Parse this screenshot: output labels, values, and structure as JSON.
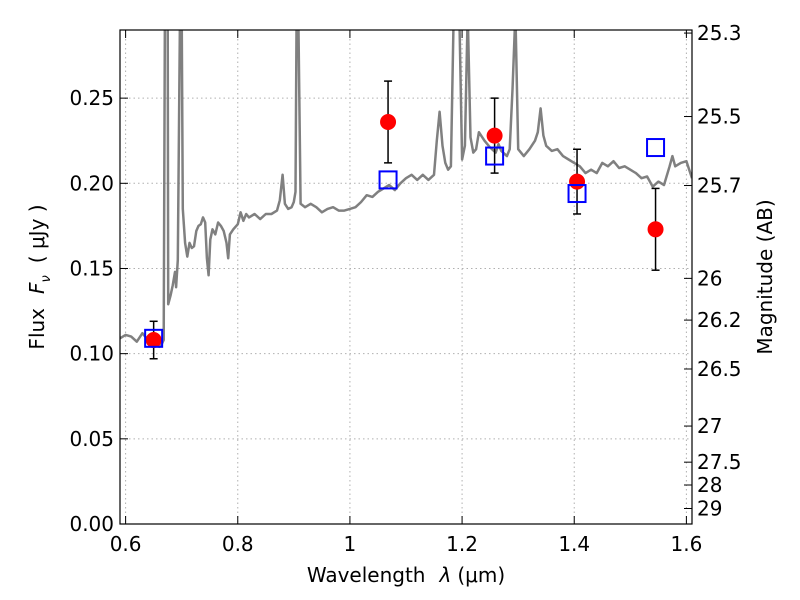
{
  "chart_data": {
    "type": "scatter",
    "title": "",
    "xlabel": "Wavelength λ (μm)",
    "xlabel_prefix": "Wavelength",
    "xlabel_symbol": "λ",
    "xlabel_unit": "(μm)",
    "ylabel": "Flux Fν ( μJy )",
    "ylabel_prefix": "Flux",
    "ylabel_symbol": "F",
    "ylabel_subscript": "ν",
    "ylabel_unit": "( μJy )",
    "ylabel_right": "Magnitude (AB)",
    "xlim": [
      0.59,
      1.61
    ],
    "ylim": [
      0.0,
      0.29
    ],
    "grid": true,
    "x_ticks": [
      0.6,
      0.8,
      1.0,
      1.2,
      1.4,
      1.6
    ],
    "x_tick_labels": [
      "0.6",
      "0.8",
      "1",
      "1.2",
      "1.4",
      "1.6"
    ],
    "y_ticks": [
      0.0,
      0.05,
      0.1,
      0.15,
      0.2,
      0.25
    ],
    "y_tick_labels": [
      "0.00",
      "0.05",
      "0.10",
      "0.15",
      "0.20",
      "0.25"
    ],
    "right_axis": {
      "ticks": [
        {
          "flux": 0.2882,
          "label": "25.3"
        },
        {
          "flux": 0.2392,
          "label": "25.5"
        },
        {
          "flux": 0.1987,
          "label": "25.7"
        },
        {
          "flux": 0.1442,
          "label": "26"
        },
        {
          "flux": 0.1197,
          "label": "26.2"
        },
        {
          "flux": 0.091,
          "label": "26.5"
        },
        {
          "flux": 0.0575,
          "label": "27"
        },
        {
          "flux": 0.0363,
          "label": "27.5"
        },
        {
          "flux": 0.0229,
          "label": "28"
        },
        {
          "flux": 0.0091,
          "label": "29"
        }
      ]
    },
    "series": [
      {
        "kind": "line",
        "color": "#808080",
        "points": [
          [
            0.59,
            0.109
          ],
          [
            0.6,
            0.111
          ],
          [
            0.61,
            0.11
          ],
          [
            0.62,
            0.107
          ],
          [
            0.63,
            0.112
          ],
          [
            0.64,
            0.108
          ],
          [
            0.65,
            0.104
          ],
          [
            0.655,
            0.106
          ],
          [
            0.66,
            0.104
          ],
          [
            0.665,
            0.106
          ],
          [
            0.668,
            0.108
          ],
          [
            0.67,
            0.3
          ],
          [
            0.672,
            0.3
          ],
          [
            0.673,
            0.3
          ],
          [
            0.675,
            0.3
          ],
          [
            0.676,
            0.129
          ],
          [
            0.68,
            0.134
          ],
          [
            0.684,
            0.14
          ],
          [
            0.688,
            0.148
          ],
          [
            0.69,
            0.139
          ],
          [
            0.693,
            0.155
          ],
          [
            0.697,
            0.3
          ],
          [
            0.7,
            0.3
          ],
          [
            0.702,
            0.185
          ],
          [
            0.706,
            0.165
          ],
          [
            0.71,
            0.157
          ],
          [
            0.714,
            0.165
          ],
          [
            0.718,
            0.162
          ],
          [
            0.722,
            0.163
          ],
          [
            0.726,
            0.172
          ],
          [
            0.73,
            0.175
          ],
          [
            0.734,
            0.176
          ],
          [
            0.738,
            0.18
          ],
          [
            0.742,
            0.177
          ],
          [
            0.745,
            0.156
          ],
          [
            0.748,
            0.146
          ],
          [
            0.751,
            0.167
          ],
          [
            0.755,
            0.173
          ],
          [
            0.76,
            0.17
          ],
          [
            0.765,
            0.177
          ],
          [
            0.77,
            0.175
          ],
          [
            0.775,
            0.172
          ],
          [
            0.78,
            0.165
          ],
          [
            0.783,
            0.156
          ],
          [
            0.786,
            0.17
          ],
          [
            0.792,
            0.173
          ],
          [
            0.8,
            0.176
          ],
          [
            0.805,
            0.183
          ],
          [
            0.81,
            0.178
          ],
          [
            0.815,
            0.182
          ],
          [
            0.82,
            0.18
          ],
          [
            0.83,
            0.182
          ],
          [
            0.84,
            0.179
          ],
          [
            0.85,
            0.182
          ],
          [
            0.86,
            0.182
          ],
          [
            0.87,
            0.184
          ],
          [
            0.875,
            0.19
          ],
          [
            0.88,
            0.205
          ],
          [
            0.884,
            0.188
          ],
          [
            0.89,
            0.185
          ],
          [
            0.896,
            0.186
          ],
          [
            0.9,
            0.189
          ],
          [
            0.903,
            0.195
          ],
          [
            0.905,
            0.3
          ],
          [
            0.908,
            0.3
          ],
          [
            0.912,
            0.188
          ],
          [
            0.92,
            0.186
          ],
          [
            0.93,
            0.188
          ],
          [
            0.94,
            0.186
          ],
          [
            0.95,
            0.183
          ],
          [
            0.96,
            0.185
          ],
          [
            0.97,
            0.186
          ],
          [
            0.98,
            0.184
          ],
          [
            0.99,
            0.184
          ],
          [
            1.0,
            0.185
          ],
          [
            1.01,
            0.186
          ],
          [
            1.02,
            0.189
          ],
          [
            1.03,
            0.193
          ],
          [
            1.04,
            0.192
          ],
          [
            1.05,
            0.195
          ],
          [
            1.06,
            0.197
          ],
          [
            1.07,
            0.199
          ],
          [
            1.08,
            0.196
          ],
          [
            1.09,
            0.2
          ],
          [
            1.1,
            0.203
          ],
          [
            1.11,
            0.205
          ],
          [
            1.12,
            0.202
          ],
          [
            1.13,
            0.205
          ],
          [
            1.14,
            0.202
          ],
          [
            1.15,
            0.205
          ],
          [
            1.155,
            0.225
          ],
          [
            1.16,
            0.242
          ],
          [
            1.165,
            0.222
          ],
          [
            1.17,
            0.212
          ],
          [
            1.175,
            0.208
          ],
          [
            1.18,
            0.21
          ],
          [
            1.185,
            0.3
          ],
          [
            1.19,
            0.3
          ],
          [
            1.195,
            0.3
          ],
          [
            1.2,
            0.214
          ],
          [
            1.205,
            0.222
          ],
          [
            1.21,
            0.3
          ],
          [
            1.215,
            0.227
          ],
          [
            1.22,
            0.218
          ],
          [
            1.225,
            0.22
          ],
          [
            1.23,
            0.23
          ],
          [
            1.24,
            0.225
          ],
          [
            1.25,
            0.221
          ],
          [
            1.26,
            0.218
          ],
          [
            1.265,
            0.223
          ],
          [
            1.27,
            0.219
          ],
          [
            1.28,
            0.216
          ],
          [
            1.285,
            0.22
          ],
          [
            1.29,
            0.255
          ],
          [
            1.295,
            0.3
          ],
          [
            1.3,
            0.22
          ],
          [
            1.31,
            0.216
          ],
          [
            1.32,
            0.22
          ],
          [
            1.33,
            0.225
          ],
          [
            1.335,
            0.23
          ],
          [
            1.34,
            0.244
          ],
          [
            1.345,
            0.228
          ],
          [
            1.35,
            0.222
          ],
          [
            1.36,
            0.219
          ],
          [
            1.37,
            0.22
          ],
          [
            1.38,
            0.216
          ],
          [
            1.39,
            0.214
          ],
          [
            1.4,
            0.212
          ],
          [
            1.41,
            0.21
          ],
          [
            1.42,
            0.206
          ],
          [
            1.43,
            0.208
          ],
          [
            1.44,
            0.206
          ],
          [
            1.45,
            0.212
          ],
          [
            1.46,
            0.21
          ],
          [
            1.47,
            0.213
          ],
          [
            1.48,
            0.209
          ],
          [
            1.49,
            0.21
          ],
          [
            1.5,
            0.208
          ],
          [
            1.51,
            0.206
          ],
          [
            1.52,
            0.203
          ],
          [
            1.53,
            0.204
          ],
          [
            1.54,
            0.198
          ],
          [
            1.55,
            0.201
          ],
          [
            1.56,
            0.199
          ],
          [
            1.57,
            0.21
          ],
          [
            1.575,
            0.216
          ],
          [
            1.58,
            0.21
          ],
          [
            1.59,
            0.212
          ],
          [
            1.6,
            0.213
          ],
          [
            1.61,
            0.203
          ]
        ]
      },
      {
        "kind": "errorbar",
        "color": "#ff0000",
        "marker": "circle",
        "points": [
          {
            "x": 0.65,
            "y": 0.108,
            "yerr": 0.011
          },
          {
            "x": 1.068,
            "y": 0.236,
            "yerr": 0.024
          },
          {
            "x": 1.258,
            "y": 0.228,
            "yerr": 0.022
          },
          {
            "x": 1.405,
            "y": 0.201,
            "yerr": 0.019
          },
          {
            "x": 1.545,
            "y": 0.173,
            "yerr": 0.024
          }
        ]
      },
      {
        "kind": "scatter",
        "color": "#0000ff",
        "marker": "open-square",
        "points": [
          {
            "x": 0.65,
            "y": 0.109
          },
          {
            "x": 1.068,
            "y": 0.202
          },
          {
            "x": 1.258,
            "y": 0.216
          },
          {
            "x": 1.405,
            "y": 0.194
          },
          {
            "x": 1.545,
            "y": 0.221
          }
        ]
      }
    ]
  }
}
